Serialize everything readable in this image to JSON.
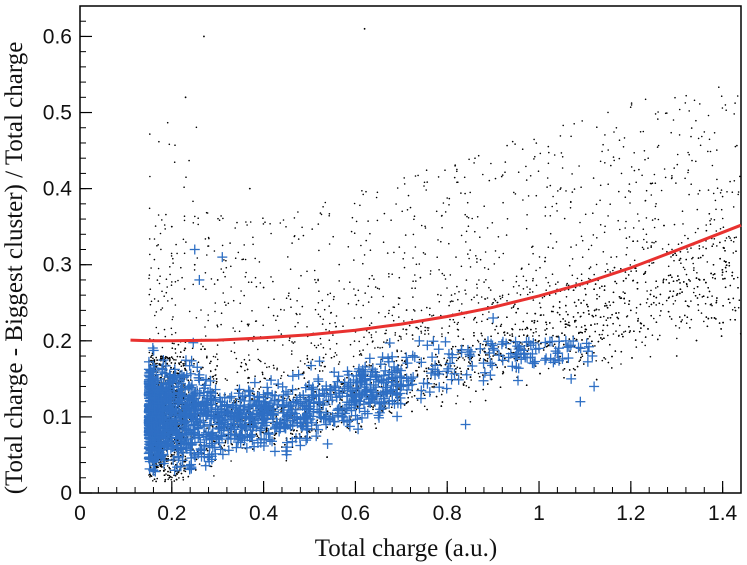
{
  "chart_data": {
    "type": "scatter",
    "xlabel": "Total charge (a.u.)",
    "ylabel": "(Total charge - Biggest cluster) / Total charge",
    "xlim": [
      0,
      1.44
    ],
    "ylim": [
      0,
      0.64
    ],
    "xticks": [
      0,
      0.2,
      0.4,
      0.6,
      0.8,
      1,
      1.2,
      1.4
    ],
    "xtick_labels": [
      "0",
      "0.2",
      "0.4",
      "0.6",
      "0.8",
      "1",
      "1.2",
      "1.4"
    ],
    "yticks": [
      0,
      0.1,
      0.2,
      0.3,
      0.4,
      0.5,
      0.6
    ],
    "ytick_labels": [
      "0",
      "0.1",
      "0.2",
      "0.3",
      "0.4",
      "0.5",
      "0.6"
    ],
    "grid": false,
    "legend": "none",
    "series": [
      {
        "marker": "dot",
        "color": "#000000",
        "description_values": "dense black dots; band rising from (0.15,0.02-0.17) to (1.4,0.25-0.31), scattered halo up to y=0.62",
        "x": [
          0.16,
          0.17,
          0.18,
          0.2,
          0.22,
          0.25,
          0.3,
          0.35,
          0.4,
          0.45,
          0.5,
          0.55,
          0.6,
          0.65,
          0.7,
          0.75,
          0.8,
          0.85,
          0.9,
          0.95,
          1.0,
          1.05,
          1.1,
          1.15,
          1.2,
          1.25,
          1.3,
          1.35,
          1.4,
          0.2,
          0.25,
          0.3,
          0.4,
          0.6,
          0.9,
          1.3,
          0.27,
          0.23,
          0.37,
          0.62
        ],
        "y": [
          0.05,
          0.1,
          0.14,
          0.09,
          0.12,
          0.1,
          0.11,
          0.1,
          0.11,
          0.1,
          0.11,
          0.12,
          0.13,
          0.13,
          0.14,
          0.15,
          0.16,
          0.17,
          0.18,
          0.19,
          0.2,
          0.21,
          0.22,
          0.23,
          0.24,
          0.25,
          0.26,
          0.28,
          0.29,
          0.35,
          0.3,
          0.28,
          0.27,
          0.26,
          0.25,
          0.18,
          0.6,
          0.52,
          0.4,
          0.61
        ]
      },
      {
        "marker": "plus",
        "color": "#2e6fc4",
        "description_values": "blue crosses concentrated in band y=0.03-0.2 for x 0.15-0.6, sparse along rising band to x~1.12",
        "x": [
          0.15,
          0.16,
          0.17,
          0.18,
          0.19,
          0.2,
          0.22,
          0.25,
          0.28,
          0.3,
          0.35,
          0.4,
          0.45,
          0.5,
          0.55,
          0.6,
          0.7,
          0.8,
          0.85,
          0.9,
          0.95,
          1.0,
          1.07,
          1.09,
          1.12,
          0.25,
          0.26,
          0.31,
          0.9,
          0.84
        ],
        "y": [
          0.08,
          0.12,
          0.15,
          0.05,
          0.09,
          0.11,
          0.1,
          0.13,
          0.08,
          0.1,
          0.09,
          0.12,
          0.1,
          0.11,
          0.1,
          0.12,
          0.14,
          0.16,
          0.18,
          0.19,
          0.18,
          0.19,
          0.15,
          0.12,
          0.14,
          0.32,
          0.28,
          0.31,
          0.23,
          0.09
        ]
      },
      {
        "type": "line",
        "color": "#e8312f",
        "x": [
          0.11,
          0.15,
          0.2,
          0.3,
          0.4,
          0.5,
          0.6,
          0.7,
          0.8,
          0.9,
          1.0,
          1.1,
          1.2,
          1.3,
          1.44
        ],
        "y": [
          0.201,
          0.2,
          0.2,
          0.201,
          0.204,
          0.208,
          0.214,
          0.222,
          0.232,
          0.244,
          0.259,
          0.276,
          0.296,
          0.319,
          0.352
        ]
      }
    ]
  }
}
